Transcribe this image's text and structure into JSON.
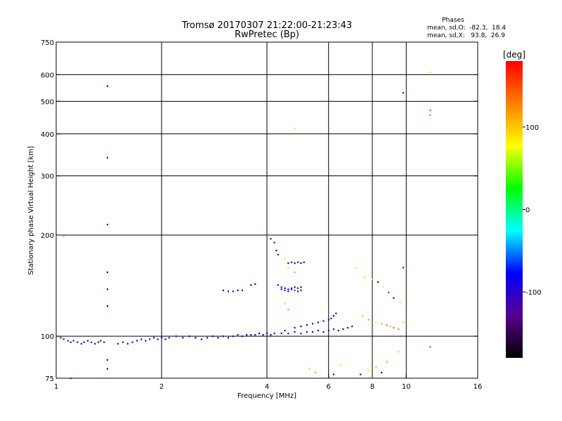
{
  "chart_data": {
    "type": "scatter",
    "title": "Tromsø 20170307 21:22:00-21:23:43",
    "subtitle": "RwPretec (Bp)",
    "xlabel": "Frequency [MHz]",
    "ylabel": "Stationary phase Virtual Height [km]",
    "x_scale": "log",
    "y_scale": "log",
    "xlim": [
      1,
      16
    ],
    "ylim": [
      75,
      750
    ],
    "x_ticks": [
      1,
      2,
      4,
      6,
      8,
      10,
      16
    ],
    "y_ticks": [
      75,
      100,
      200,
      300,
      400,
      500,
      600,
      750
    ],
    "x_grid": [
      2,
      4,
      6,
      8,
      10
    ],
    "y_grid": [
      100,
      200,
      300,
      400,
      500,
      600
    ],
    "phase_stats": {
      "heading": "Phases",
      "line_o": "mean, sd,O:  -82.3,  18.4",
      "line_x": "mean, sd,X:   93.8,  26.9"
    },
    "colorbar": {
      "label": "[deg]",
      "range": [
        -180,
        180
      ],
      "ticks": [
        100,
        0,
        -100
      ],
      "stops": [
        "#000000",
        "#5a0090",
        "#0000ff",
        "#00ffff",
        "#00ff00",
        "#ffff00",
        "#ff8000",
        "#ff0000"
      ]
    },
    "series": [
      {
        "points": [
          [
            1.03,
            99,
            -110
          ],
          [
            1.05,
            98,
            -105
          ],
          [
            1.08,
            97,
            -115
          ],
          [
            1.1,
            96,
            -100
          ],
          [
            1.12,
            97,
            -108
          ],
          [
            1.15,
            96,
            -95
          ],
          [
            1.18,
            95,
            -112
          ],
          [
            1.2,
            96,
            -102
          ],
          [
            1.23,
            97,
            -98
          ],
          [
            1.26,
            96,
            -110
          ],
          [
            1.29,
            95,
            -105
          ],
          [
            1.32,
            96,
            -100
          ],
          [
            1.34,
            97,
            -96
          ],
          [
            1.37,
            96,
            -108
          ],
          [
            1.5,
            95,
            -100
          ],
          [
            1.55,
            96,
            -110
          ],
          [
            1.6,
            95,
            -95
          ],
          [
            1.65,
            96,
            -105
          ],
          [
            1.7,
            97,
            -100
          ],
          [
            1.75,
            98,
            -110
          ],
          [
            1.8,
            97,
            -92
          ],
          [
            1.85,
            98,
            -104
          ],
          [
            1.9,
            99,
            -98
          ],
          [
            1.95,
            98,
            -110
          ],
          [
            2.0,
            99,
            -100
          ],
          [
            2.05,
            98,
            -88
          ],
          [
            2.1,
            99,
            -105
          ],
          [
            2.2,
            100,
            -95
          ],
          [
            2.3,
            99,
            -102
          ],
          [
            2.4,
            100,
            -84
          ],
          [
            2.5,
            99,
            -108
          ],
          [
            2.6,
            98,
            -75
          ],
          [
            2.7,
            99,
            -100
          ],
          [
            2.8,
            100,
            -92
          ],
          [
            2.9,
            99,
            -105
          ],
          [
            3.0,
            100,
            -98
          ],
          [
            3.1,
            99,
            -110
          ],
          [
            3.2,
            100,
            -96
          ],
          [
            3.3,
            101,
            -104
          ],
          [
            3.4,
            100,
            -88
          ],
          [
            3.5,
            101,
            -102
          ],
          [
            3.6,
            101,
            -95
          ],
          [
            3.7,
            101,
            -108
          ],
          [
            3.8,
            102,
            -100
          ],
          [
            3.9,
            101,
            -92
          ],
          [
            4.0,
            102,
            -104
          ],
          [
            4.1,
            101,
            -98
          ],
          [
            4.2,
            102,
            -110
          ],
          [
            4.4,
            102,
            -96
          ],
          [
            4.6,
            102,
            -102
          ],
          [
            4.8,
            103,
            -100
          ],
          [
            5.0,
            102,
            -105
          ],
          [
            5.2,
            103,
            -95
          ],
          [
            5.4,
            103,
            -108
          ],
          [
            5.6,
            104,
            -100
          ],
          [
            5.8,
            103,
            -95
          ],
          [
            6.0,
            104,
            -104
          ],
          [
            6.2,
            105,
            -100
          ],
          [
            6.4,
            104,
            -98
          ],
          [
            6.6,
            105,
            -106
          ],
          [
            6.8,
            106,
            -95
          ],
          [
            7.0,
            107,
            -102
          ],
          [
            4.5,
            104,
            -100
          ],
          [
            4.8,
            106,
            -96
          ],
          [
            5.0,
            107,
            -104
          ],
          [
            5.2,
            108,
            -98
          ],
          [
            5.4,
            109,
            -102
          ],
          [
            5.6,
            110,
            -95
          ],
          [
            5.8,
            111,
            -100
          ],
          [
            6.0,
            112,
            -104
          ],
          [
            6.1,
            113,
            -100
          ],
          [
            6.2,
            115,
            -96
          ],
          [
            6.3,
            117,
            -102
          ],
          [
            3.0,
            137,
            -100
          ],
          [
            3.1,
            136,
            -104
          ],
          [
            3.2,
            136,
            -96
          ],
          [
            3.3,
            137,
            -102
          ],
          [
            3.4,
            137,
            -100
          ],
          [
            3.6,
            142,
            -105
          ],
          [
            3.7,
            143,
            -98
          ],
          [
            4.3,
            142,
            -100
          ],
          [
            4.4,
            140,
            -104
          ],
          [
            4.5,
            139,
            -96
          ],
          [
            4.6,
            138,
            -102
          ],
          [
            4.7,
            139,
            -100
          ],
          [
            4.8,
            140,
            -98
          ],
          [
            4.9,
            139,
            -102
          ],
          [
            5.0,
            140,
            -95
          ],
          [
            4.4,
            138,
            -80
          ],
          [
            4.5,
            137,
            -70
          ],
          [
            4.6,
            136,
            -100
          ],
          [
            4.7,
            138,
            -90
          ],
          [
            4.8,
            137,
            -60
          ],
          [
            4.9,
            136,
            -110
          ],
          [
            5.0,
            137,
            -100
          ],
          [
            4.6,
            165,
            -100
          ],
          [
            4.7,
            166,
            -104
          ],
          [
            4.8,
            165,
            -96
          ],
          [
            4.9,
            166,
            -102
          ],
          [
            5.0,
            165,
            -100
          ],
          [
            5.1,
            166,
            -98
          ],
          [
            4.1,
            195,
            -100
          ],
          [
            4.2,
            190,
            -96
          ],
          [
            4.25,
            180,
            -104
          ],
          [
            4.3,
            175,
            -100
          ],
          [
            4.5,
            170,
            80
          ],
          [
            4.6,
            160,
            60
          ],
          [
            4.8,
            155,
            -20
          ],
          [
            4.5,
            125,
            90
          ],
          [
            4.6,
            120,
            40
          ],
          [
            7.2,
            160,
            90
          ],
          [
            7.6,
            150,
            70
          ],
          [
            8.0,
            148,
            100
          ],
          [
            8.3,
            145,
            -100
          ],
          [
            8.6,
            140,
            80
          ],
          [
            8.9,
            135,
            -60
          ],
          [
            9.2,
            130,
            -100
          ],
          [
            9.6,
            126,
            90
          ],
          [
            9.8,
            160,
            -100
          ],
          [
            7.5,
            115,
            100
          ],
          [
            7.8,
            112,
            120
          ],
          [
            8.2,
            110,
            80
          ],
          [
            8.5,
            109,
            110
          ],
          [
            8.8,
            108,
            130
          ],
          [
            9.0,
            107,
            100
          ],
          [
            9.2,
            106,
            140
          ],
          [
            9.5,
            105,
            120
          ],
          [
            9.8,
            110,
            90
          ],
          [
            5.3,
            80,
            60
          ],
          [
            5.5,
            78,
            110
          ],
          [
            6.2,
            77,
            -100
          ],
          [
            6.5,
            82,
            90
          ],
          [
            7.4,
            77,
            -90
          ],
          [
            7.8,
            79,
            70
          ],
          [
            8.2,
            81,
            100
          ],
          [
            8.5,
            78,
            -80
          ],
          [
            8.8,
            84,
            40
          ],
          [
            9.5,
            90,
            60
          ],
          [
            1.05,
            198,
            100
          ],
          [
            1.4,
            555,
            -100
          ],
          [
            1.4,
            340,
            -100
          ],
          [
            1.4,
            215,
            -100
          ],
          [
            1.4,
            155,
            -90
          ],
          [
            1.4,
            138,
            -80
          ],
          [
            1.4,
            123,
            -100
          ],
          [
            1.4,
            85,
            -100
          ],
          [
            1.4,
            80,
            -100
          ],
          [
            4.8,
            415,
            90
          ],
          [
            9.8,
            530,
            -110
          ],
          [
            11.7,
            610,
            70
          ],
          [
            11.7,
            470,
            150
          ],
          [
            11.7,
            455,
            -40
          ],
          [
            11.7,
            93,
            150
          ],
          [
            1.1,
            75,
            160
          ]
        ]
      }
    ]
  }
}
